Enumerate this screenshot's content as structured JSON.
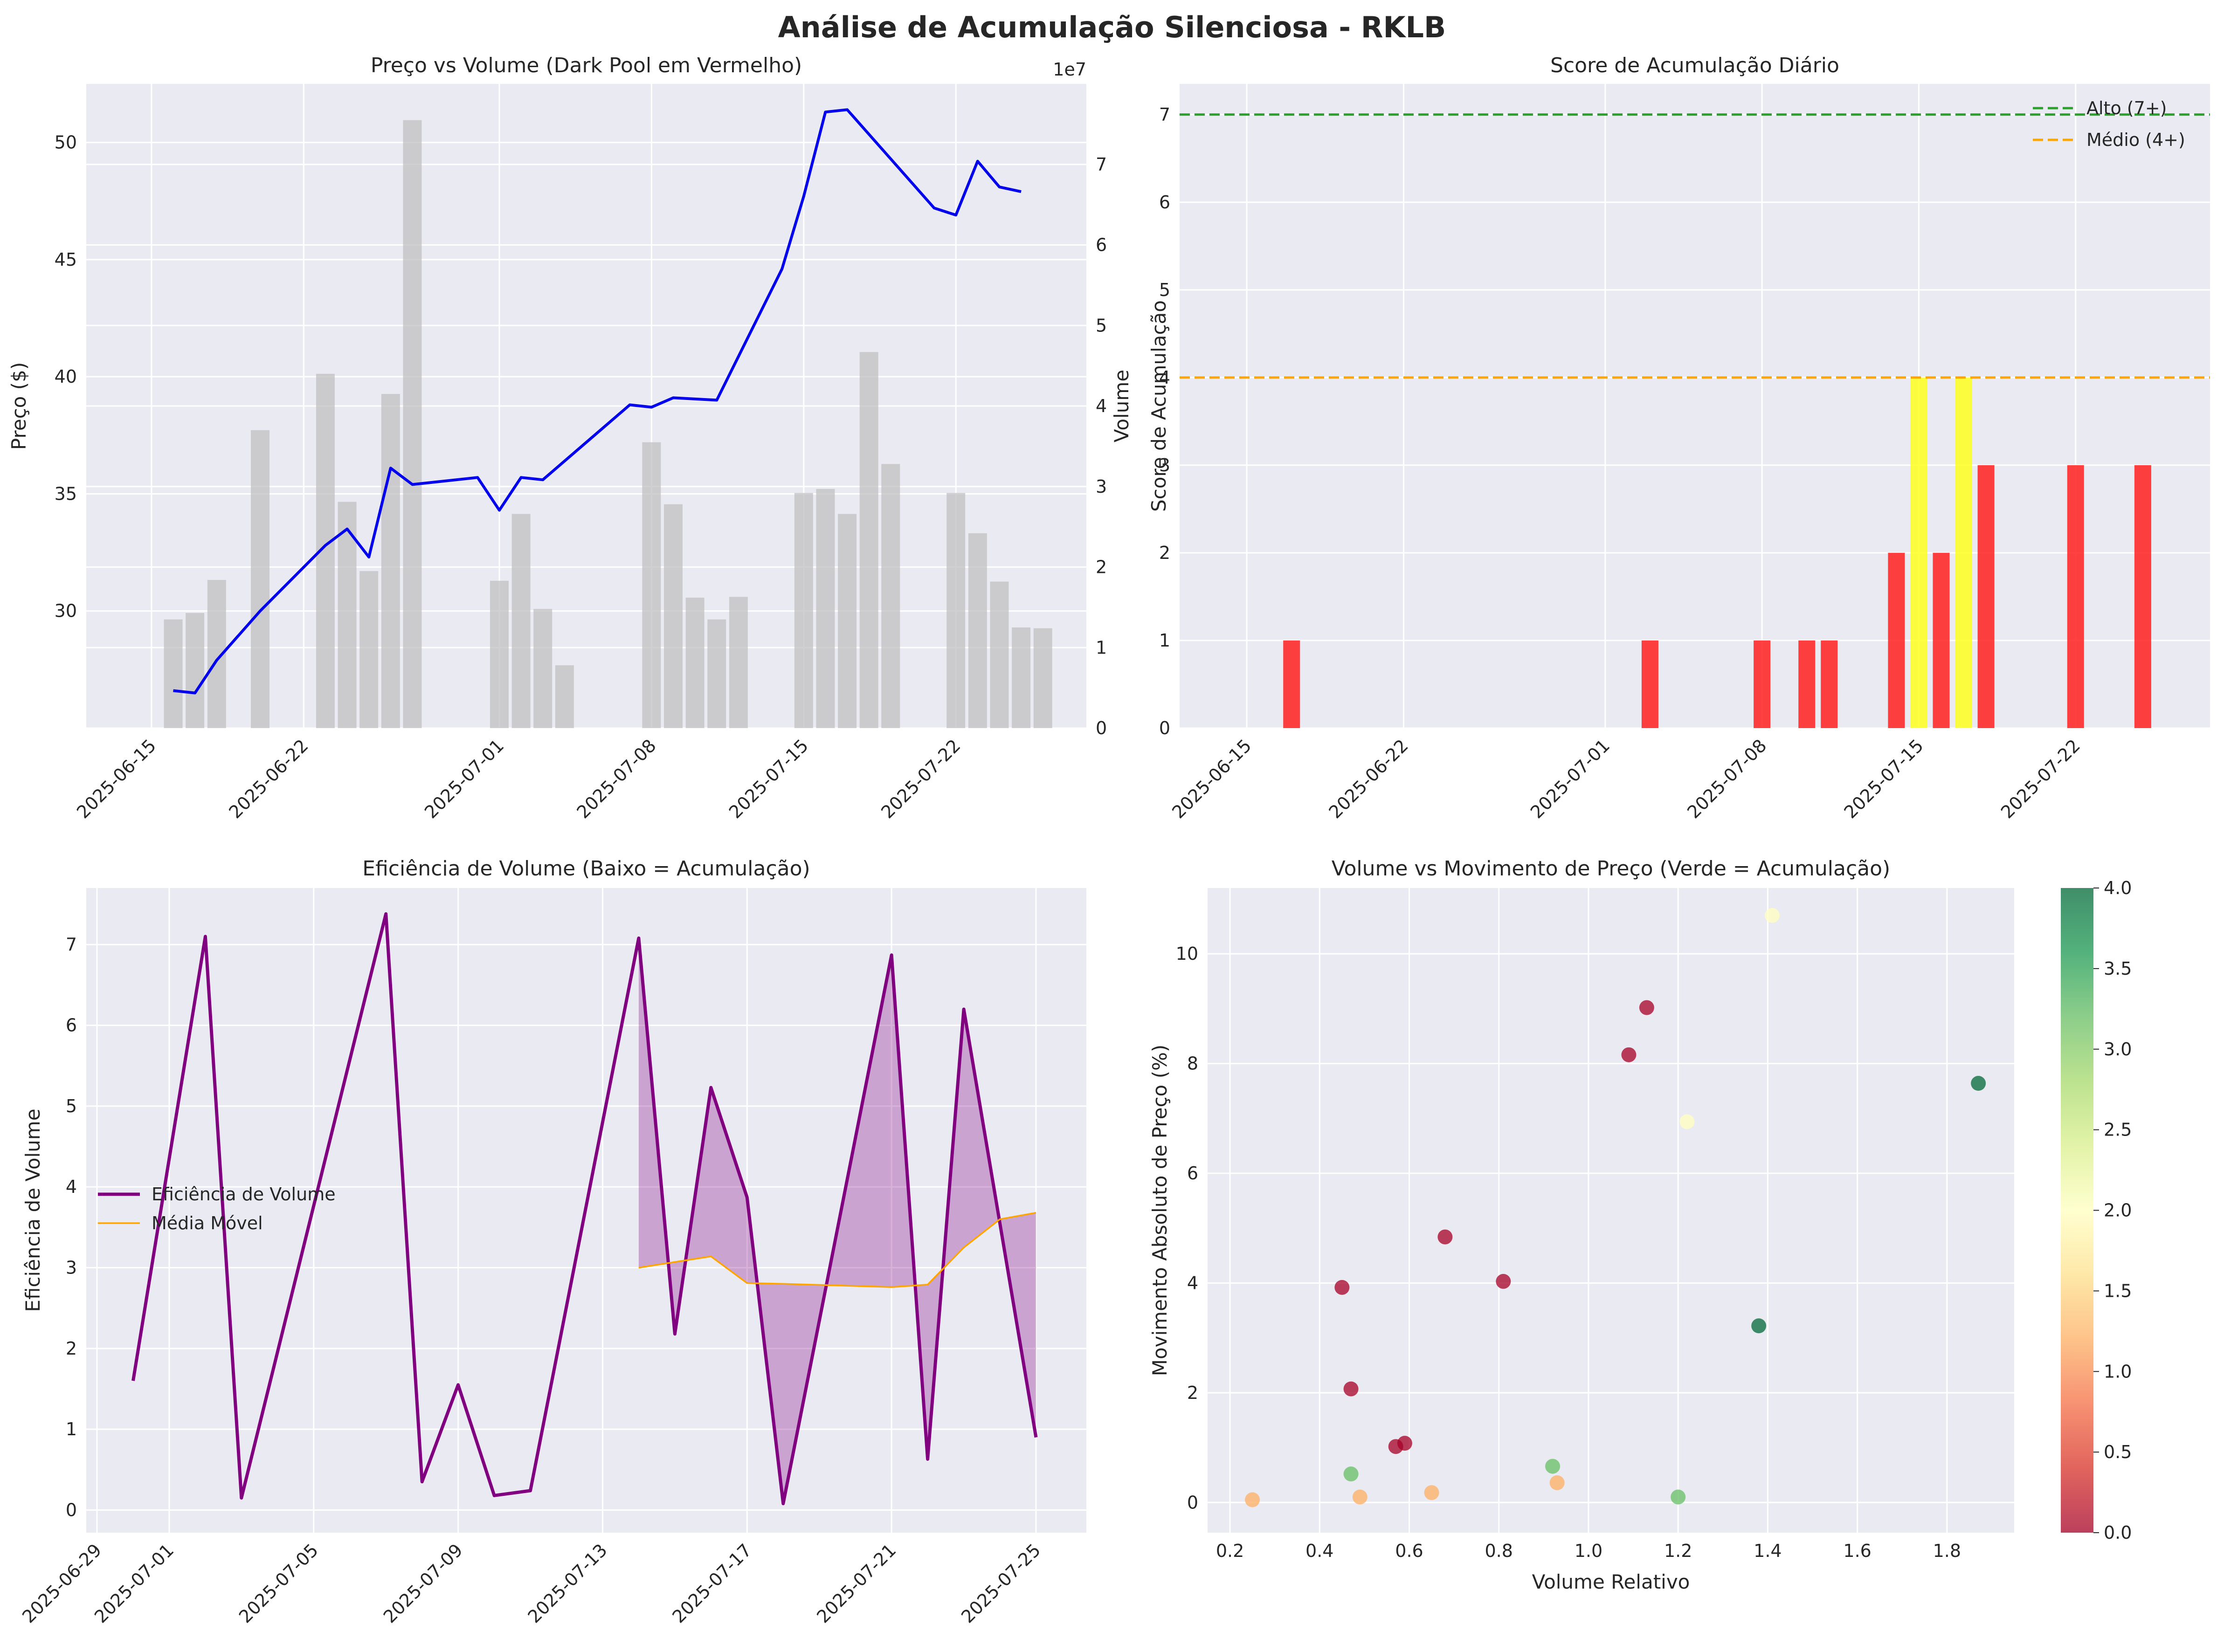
{
  "figure": {
    "suptitle": "Análise de Acumulação Silenciosa - RKLB"
  },
  "chart_data": [
    {
      "id": "price-volume",
      "type": "line",
      "title": "Preço vs Volume (Dark Pool em Vermelho)",
      "ylabel": "Preço ($)",
      "ylabel2": "Volume",
      "y2_offset_label": "1e7",
      "x_ticks": [
        "2025-06-15",
        "2025-06-22",
        "2025-07-01",
        "2025-07-08",
        "2025-07-15",
        "2025-07-22"
      ],
      "ylim": [
        25,
        52.5
      ],
      "yticks": [
        30,
        35,
        40,
        45,
        50
      ],
      "y2lim": [
        0,
        80000000
      ],
      "y2ticks": [
        0,
        10000000,
        20000000,
        30000000,
        40000000,
        50000000,
        60000000,
        70000000
      ],
      "y2tick_labels": [
        "0",
        "1",
        "2",
        "3",
        "4",
        "5",
        "6",
        "7"
      ],
      "grid": true,
      "series": [
        {
          "kind": "line",
          "color": "#0000ee",
          "points": [
            [
              "2025-06-16",
              26.6
            ],
            [
              "2025-06-17",
              26.5
            ],
            [
              "2025-06-18",
              27.9
            ],
            [
              "2025-06-20",
              30.0
            ],
            [
              "2025-06-23",
              32.8
            ],
            [
              "2025-06-24",
              33.5
            ],
            [
              "2025-06-25",
              32.3
            ],
            [
              "2025-06-26",
              36.1
            ],
            [
              "2025-06-27",
              35.4
            ],
            [
              "2025-06-30",
              35.7
            ],
            [
              "2025-07-01",
              34.3
            ],
            [
              "2025-07-02",
              35.7
            ],
            [
              "2025-07-03",
              35.6
            ],
            [
              "2025-07-07",
              38.8
            ],
            [
              "2025-07-08",
              38.7
            ],
            [
              "2025-07-09",
              39.1
            ],
            [
              "2025-07-11",
              39.0
            ],
            [
              "2025-07-14",
              44.6
            ],
            [
              "2025-07-15",
              47.7
            ],
            [
              "2025-07-16",
              51.3
            ],
            [
              "2025-07-17",
              51.4
            ],
            [
              "2025-07-21",
              47.2
            ],
            [
              "2025-07-22",
              46.9
            ],
            [
              "2025-07-23",
              49.2
            ],
            [
              "2025-07-24",
              48.1
            ],
            [
              "2025-07-25",
              47.9
            ]
          ]
        },
        {
          "kind": "bar",
          "color": "#c0c0c0",
          "points": [
            [
              "2025-06-16",
              13500000
            ],
            [
              "2025-06-17",
              14300000
            ],
            [
              "2025-06-18",
              18400000
            ],
            [
              "2025-06-20",
              37000000
            ],
            [
              "2025-06-23",
              44000000
            ],
            [
              "2025-06-24",
              28100000
            ],
            [
              "2025-06-25",
              19500000
            ],
            [
              "2025-06-26",
              41500000
            ],
            [
              "2025-06-27",
              75500000
            ],
            [
              "2025-07-01",
              18300000
            ],
            [
              "2025-07-02",
              26600000
            ],
            [
              "2025-07-03",
              14800000
            ],
            [
              "2025-07-04",
              7800000
            ],
            [
              "2025-07-08",
              35500000
            ],
            [
              "2025-07-09",
              27800000
            ],
            [
              "2025-07-10",
              16200000
            ],
            [
              "2025-07-11",
              13500000
            ],
            [
              "2025-07-12",
              16300000
            ],
            [
              "2025-07-15",
              29200000
            ],
            [
              "2025-07-16",
              29700000
            ],
            [
              "2025-07-17",
              26600000
            ],
            [
              "2025-07-18",
              46700000
            ],
            [
              "2025-07-19",
              32800000
            ],
            [
              "2025-07-22",
              29200000
            ],
            [
              "2025-07-23",
              24200000
            ],
            [
              "2025-07-24",
              18200000
            ],
            [
              "2025-07-25",
              12500000
            ],
            [
              "2025-07-26",
              12400000
            ]
          ]
        }
      ]
    },
    {
      "id": "score",
      "type": "bar",
      "title": "Score de Acumulação Diário",
      "ylabel": "Score de Acumulação",
      "x_ticks": [
        "2025-06-15",
        "2025-06-22",
        "2025-07-01",
        "2025-07-08",
        "2025-07-15",
        "2025-07-22"
      ],
      "ylim": [
        0,
        7.35
      ],
      "yticks": [
        0,
        1,
        2,
        3,
        4,
        5,
        6,
        7
      ],
      "grid": true,
      "legend_position": "top-right",
      "thresholds": [
        {
          "value": 7,
          "label": "Alto (7+)",
          "color": "#2ca02c"
        },
        {
          "value": 4,
          "label": "Médio (4+)",
          "color": "#ffa500"
        }
      ],
      "bars": [
        {
          "date": "2025-06-17",
          "score": 1,
          "color": "#ff2020"
        },
        {
          "date": "2025-07-03",
          "score": 1,
          "color": "#ff2020"
        },
        {
          "date": "2025-07-08",
          "score": 1,
          "color": "#ff2020"
        },
        {
          "date": "2025-07-10",
          "score": 1,
          "color": "#ff2020"
        },
        {
          "date": "2025-07-11",
          "score": 1,
          "color": "#ff2020"
        },
        {
          "date": "2025-07-14",
          "score": 2,
          "color": "#ff2020"
        },
        {
          "date": "2025-07-15",
          "score": 4,
          "color": "#ffff20"
        },
        {
          "date": "2025-07-16",
          "score": 2,
          "color": "#ff2020"
        },
        {
          "date": "2025-07-17",
          "score": 4,
          "color": "#ffff20"
        },
        {
          "date": "2025-07-18",
          "score": 3,
          "color": "#ff2020"
        },
        {
          "date": "2025-07-22",
          "score": 3,
          "color": "#ff2020"
        },
        {
          "date": "2025-07-25",
          "score": 3,
          "color": "#ff2020"
        }
      ]
    },
    {
      "id": "efficiency",
      "type": "line",
      "title": "Eficiência de Volume (Baixo = Acumulação)",
      "ylabel": "Eficiência de Volume",
      "x_ticks": [
        "2025-06-29",
        "2025-07-01",
        "2025-07-05",
        "2025-07-09",
        "2025-07-13",
        "2025-07-17",
        "2025-07-21",
        "2025-07-25"
      ],
      "ylim": [
        -0.28,
        7.7
      ],
      "yticks": [
        0,
        1,
        2,
        3,
        4,
        5,
        6,
        7
      ],
      "grid": true,
      "legend_position": "center-left",
      "series": [
        {
          "name": "Eficiência de Volume",
          "color": "#800080",
          "points": [
            [
              "2025-06-30",
              1.6
            ],
            [
              "2025-07-02",
              7.1
            ],
            [
              "2025-07-03",
              0.15
            ],
            [
              "2025-07-07",
              7.38
            ],
            [
              "2025-07-08",
              0.35
            ],
            [
              "2025-07-09",
              1.55
            ],
            [
              "2025-07-10",
              0.18
            ],
            [
              "2025-07-11",
              0.24
            ],
            [
              "2025-07-14",
              7.08
            ],
            [
              "2025-07-15",
              2.18
            ],
            [
              "2025-07-16",
              5.23
            ],
            [
              "2025-07-17",
              3.87
            ],
            [
              "2025-07-18",
              0.08
            ],
            [
              "2025-07-21",
              6.87
            ],
            [
              "2025-07-22",
              0.63
            ],
            [
              "2025-07-23",
              6.2
            ],
            [
              "2025-07-25",
              0.9
            ]
          ]
        },
        {
          "name": "Média Móvel",
          "color": "#ffa500",
          "points": [
            [
              "2025-07-14",
              3.0
            ],
            [
              "2025-07-15",
              3.07
            ],
            [
              "2025-07-16",
              3.14
            ],
            [
              "2025-07-17",
              2.81
            ],
            [
              "2025-07-18",
              2.8
            ],
            [
              "2025-07-21",
              2.76
            ],
            [
              "2025-07-22",
              2.79
            ],
            [
              "2025-07-23",
              3.25
            ],
            [
              "2025-07-24",
              3.6
            ],
            [
              "2025-07-25",
              3.68
            ]
          ]
        }
      ]
    },
    {
      "id": "scatter",
      "type": "scatter",
      "title": "Volume vs Movimento de Preço (Verde = Acumulação)",
      "xlabel": "Volume Relativo",
      "ylabel": "Movimento Absoluto de Preço (%)",
      "xlim": [
        0.15,
        1.95
      ],
      "ylim": [
        -0.55,
        11.2
      ],
      "xticks": [
        0.2,
        0.4,
        0.6,
        0.8,
        1.0,
        1.2,
        1.4,
        1.6,
        1.8
      ],
      "yticks": [
        0,
        2,
        4,
        6,
        8,
        10
      ],
      "colorbar": {
        "min": 0,
        "max": 4,
        "ticks": [
          0.0,
          0.5,
          1.0,
          1.5,
          2.0,
          2.5,
          3.0,
          3.5,
          4.0
        ]
      },
      "grid": true,
      "points": [
        [
          0.25,
          0.05,
          1
        ],
        [
          0.45,
          3.92,
          0
        ],
        [
          0.47,
          2.07,
          0
        ],
        [
          0.47,
          0.52,
          3
        ],
        [
          0.49,
          0.1,
          1
        ],
        [
          0.57,
          1.02,
          0
        ],
        [
          0.59,
          1.08,
          0
        ],
        [
          0.65,
          0.18,
          1
        ],
        [
          0.68,
          4.84,
          0
        ],
        [
          0.81,
          4.03,
          0
        ],
        [
          0.92,
          0.66,
          3
        ],
        [
          0.93,
          0.36,
          1
        ],
        [
          1.09,
          8.16,
          0
        ],
        [
          1.13,
          9.02,
          0
        ],
        [
          1.2,
          0.1,
          3
        ],
        [
          1.22,
          6.94,
          2
        ],
        [
          1.38,
          3.22,
          4
        ],
        [
          1.41,
          10.7,
          2
        ],
        [
          1.87,
          7.64,
          4
        ]
      ]
    }
  ]
}
